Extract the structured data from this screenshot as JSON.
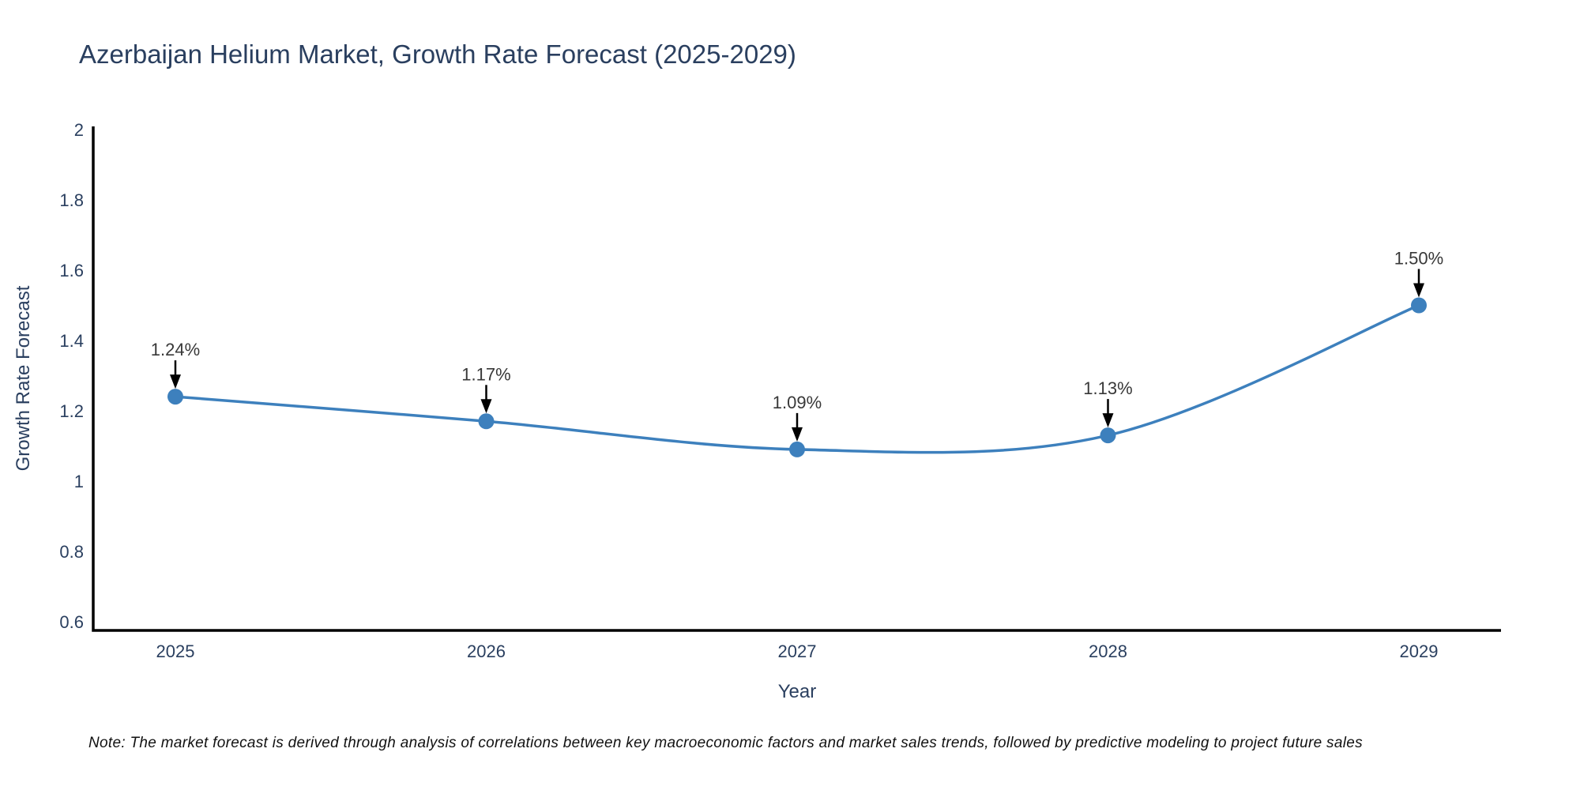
{
  "chart_data": {
    "type": "line",
    "title": "Azerbaijan Helium Market, Growth Rate Forecast (2025-2029)",
    "xlabel": "Year",
    "ylabel": "Growth Rate Forecast",
    "categories": [
      "2025",
      "2026",
      "2027",
      "2028",
      "2029"
    ],
    "series": [
      {
        "name": "Growth Rate Forecast",
        "values": [
          1.24,
          1.17,
          1.09,
          1.13,
          1.5
        ],
        "point_labels": [
          "1.24%",
          "1.17%",
          "1.09%",
          "1.13%",
          "1.50%"
        ]
      }
    ],
    "y_ticks": [
      "0.6",
      "0.8",
      "1",
      "1.2",
      "1.4",
      "1.6",
      "1.8",
      "2"
    ],
    "ylim": [
      0.575,
      2.009
    ],
    "line_shape": "spline",
    "grid": false,
    "legend_position": "none",
    "colors": {
      "line": "#3d80bd",
      "marker": "#3d80bd",
      "axis_line": "#000000",
      "tick_text": "#2a3f5f",
      "annotation_text": "#383838",
      "arrow": "#000000",
      "background": "#ffffff"
    }
  },
  "note": {
    "text": "Note: The market forecast is derived through analysis of correlations between key macroeconomic factors and market sales trends, followed by predictive modeling to project future sales"
  }
}
